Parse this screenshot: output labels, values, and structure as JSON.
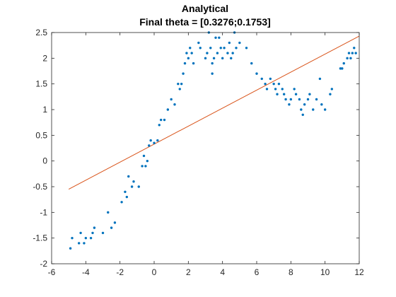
{
  "chart_data": {
    "type": "scatter",
    "title": "Analytical",
    "subtitle": "Final theta = [0.3276;0.1753]",
    "xlabel": "",
    "ylabel": "",
    "xlim": [
      -6,
      12
    ],
    "ylim": [
      -2,
      2.5
    ],
    "xticks": [
      "-6",
      "-4",
      "-2",
      "0",
      "2",
      "4",
      "6",
      "8",
      "10",
      "12"
    ],
    "yticks": [
      "-2",
      "-1.5",
      "-1",
      "-0.5",
      "0",
      "0.5",
      "1",
      "1.5",
      "2",
      "2.5"
    ],
    "grid": false,
    "legend": "none",
    "colors": {
      "points": "#0072BD",
      "fit_line": "#D95319",
      "axes": "#262626"
    },
    "series": [
      {
        "kind": "points",
        "x": [
          -4.9,
          -4.8,
          -4.4,
          -4.3,
          -4.1,
          -4.0,
          -3.7,
          -3.6,
          -3.5,
          -3.0,
          -2.7,
          -2.5,
          -2.3,
          -1.9,
          -1.7,
          -1.6,
          -1.5,
          -1.3,
          -1.2,
          -0.9,
          -0.7,
          -0.6,
          -0.5,
          -0.4,
          -0.3,
          -0.2,
          0.0,
          0.2,
          0.3,
          0.4,
          0.6,
          0.8,
          1.0,
          1.2,
          1.4,
          1.5,
          1.6,
          1.7,
          1.8,
          1.9,
          2.0,
          2.1,
          2.2,
          2.3,
          2.6,
          2.7,
          3.0,
          3.1,
          3.2,
          3.3,
          3.4,
          3.4,
          3.5,
          3.6,
          3.7,
          3.8,
          3.9,
          4.0,
          4.1,
          4.3,
          4.4,
          4.5,
          4.6,
          4.7,
          4.8,
          5.0,
          5.4,
          5.7,
          6.0,
          6.3,
          6.5,
          6.6,
          6.8,
          7.0,
          7.1,
          7.2,
          7.3,
          7.5,
          7.6,
          7.7,
          7.9,
          8.0,
          8.2,
          8.3,
          8.5,
          8.6,
          8.7,
          8.8,
          9.0,
          9.1,
          9.3,
          9.5,
          9.7,
          9.8,
          10.0,
          10.3,
          10.4,
          10.9,
          11.0,
          11.1,
          11.3,
          11.4,
          11.5,
          11.6,
          11.7,
          11.8
        ],
        "y": [
          -1.7,
          -1.5,
          -1.6,
          -1.4,
          -1.6,
          -1.5,
          -1.5,
          -1.4,
          -1.3,
          -1.4,
          -1.0,
          -1.3,
          -1.2,
          -0.8,
          -0.6,
          -0.7,
          -0.3,
          -0.5,
          -0.4,
          -0.5,
          -0.1,
          0.1,
          -0.1,
          0.0,
          0.3,
          0.4,
          0.35,
          0.4,
          0.7,
          0.8,
          0.8,
          1.0,
          1.2,
          1.1,
          1.5,
          1.4,
          1.5,
          1.7,
          1.9,
          2.1,
          2.0,
          2.2,
          2.1,
          1.9,
          2.3,
          2.2,
          2.0,
          2.1,
          2.5,
          2.2,
          1.7,
          1.9,
          2.0,
          2.4,
          2.1,
          2.4,
          2.2,
          2.0,
          2.2,
          2.1,
          2.3,
          2.0,
          2.1,
          2.5,
          2.2,
          2.3,
          2.2,
          1.9,
          1.7,
          1.6,
          1.5,
          1.4,
          1.6,
          1.5,
          1.4,
          1.3,
          1.5,
          1.4,
          1.3,
          1.2,
          1.1,
          1.2,
          1.4,
          1.3,
          1.2,
          1.0,
          0.9,
          1.1,
          1.2,
          1.3,
          1.0,
          1.2,
          1.6,
          1.1,
          1.0,
          1.3,
          1.4,
          1.8,
          1.8,
          1.9,
          2.0,
          2.1,
          2.0,
          2.1,
          2.2,
          2.1
        ]
      },
      {
        "kind": "line",
        "x": [
          -5,
          12
        ],
        "y": [
          -0.549,
          2.431
        ]
      }
    ]
  }
}
